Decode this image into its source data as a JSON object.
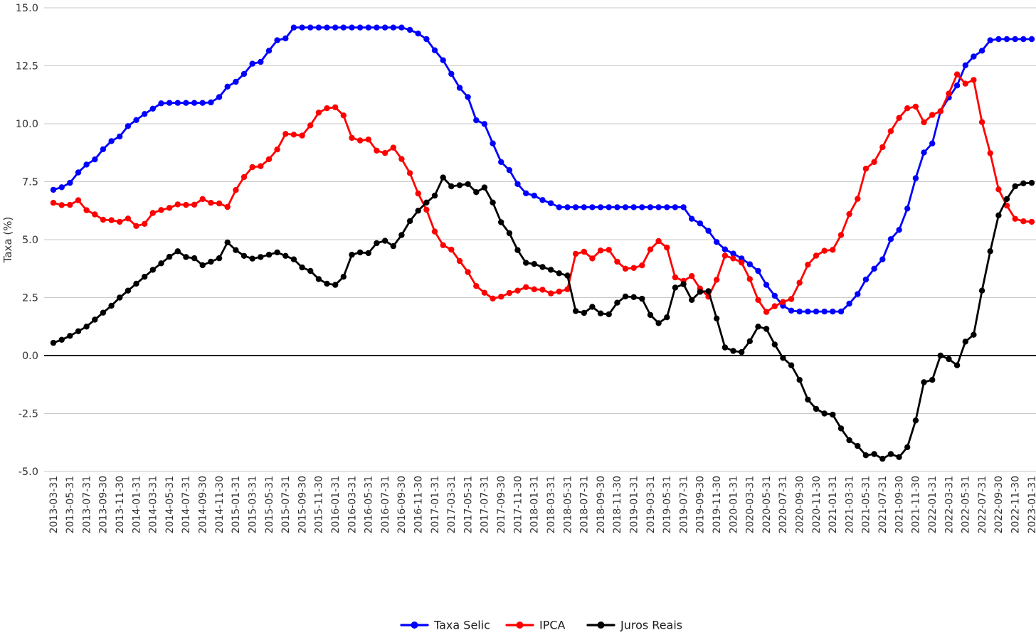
{
  "page": {
    "background": "#ffffff"
  },
  "chart_data": {
    "type": "line",
    "title": "",
    "xlabel": "",
    "ylabel": "Taxa (%)",
    "ylim": [
      -5.0,
      15.0
    ],
    "yticks": [
      15.0,
      12.5,
      10.0,
      7.5,
      5.0,
      2.5,
      0.0,
      -2.5,
      -5.0
    ],
    "x_tick_step": 2,
    "x_tick_rotation": 90,
    "grid": "horizontal",
    "zero_line": true,
    "legend_position": "bottom-center",
    "marker": "circle",
    "style": {
      "grid_color": "#c9c9c9",
      "zero_line_color": "#000000",
      "tick_label_color": "#333333",
      "axis_title_color": "#333333",
      "legend_text_color": "#1a1a1a"
    },
    "x": [
      "2013-03-31",
      "2013-04-30",
      "2013-05-31",
      "2013-06-30",
      "2013-07-31",
      "2013-08-31",
      "2013-09-30",
      "2013-10-31",
      "2013-11-30",
      "2013-12-31",
      "2014-01-31",
      "2014-02-28",
      "2014-03-31",
      "2014-04-30",
      "2014-05-31",
      "2014-06-30",
      "2014-07-31",
      "2014-08-31",
      "2014-09-30",
      "2014-10-31",
      "2014-11-30",
      "2014-12-31",
      "2015-01-31",
      "2015-02-28",
      "2015-03-31",
      "2015-04-30",
      "2015-05-31",
      "2015-06-30",
      "2015-07-31",
      "2015-08-31",
      "2015-09-30",
      "2015-10-31",
      "2015-11-30",
      "2015-12-31",
      "2016-01-31",
      "2016-02-29",
      "2016-03-31",
      "2016-04-30",
      "2016-05-31",
      "2016-06-30",
      "2016-07-31",
      "2016-08-31",
      "2016-09-30",
      "2016-10-31",
      "2016-11-30",
      "2016-12-31",
      "2017-01-31",
      "2017-02-28",
      "2017-03-31",
      "2017-04-30",
      "2017-05-31",
      "2017-06-30",
      "2017-07-31",
      "2017-08-31",
      "2017-09-30",
      "2017-10-31",
      "2017-11-30",
      "2017-12-31",
      "2018-01-31",
      "2018-02-28",
      "2018-03-31",
      "2018-04-30",
      "2018-05-31",
      "2018-06-30",
      "2018-07-31",
      "2018-08-31",
      "2018-09-30",
      "2018-10-31",
      "2018-11-30",
      "2018-12-31",
      "2019-01-31",
      "2019-02-28",
      "2019-03-31",
      "2019-04-30",
      "2019-05-31",
      "2019-06-30",
      "2019-07-31",
      "2019-08-31",
      "2019-09-30",
      "2019-10-31",
      "2019-11-30",
      "2019-12-31",
      "2020-01-31",
      "2020-02-29",
      "2020-03-31",
      "2020-04-30",
      "2020-05-31",
      "2020-06-30",
      "2020-07-31",
      "2020-08-31",
      "2020-09-30",
      "2020-10-31",
      "2020-11-30",
      "2020-12-31",
      "2021-01-31",
      "2021-02-28",
      "2021-03-31",
      "2021-04-30",
      "2021-05-31",
      "2021-06-30",
      "2021-07-31",
      "2021-08-31",
      "2021-09-30",
      "2021-10-31",
      "2021-11-30",
      "2021-12-31",
      "2022-01-31",
      "2022-02-28",
      "2022-03-31",
      "2022-04-30",
      "2022-05-31",
      "2022-06-30",
      "2022-07-31",
      "2022-08-31",
      "2022-09-30",
      "2022-10-31",
      "2022-11-30",
      "2022-12-31",
      "2023-01-31"
    ],
    "series": [
      {
        "name": "Taxa Selic",
        "color": "#0000ff",
        "values": [
          7.15,
          7.26,
          7.45,
          7.9,
          8.24,
          8.46,
          8.9,
          9.25,
          9.45,
          9.9,
          10.16,
          10.42,
          10.65,
          10.88,
          10.9,
          10.9,
          10.9,
          10.9,
          10.9,
          10.92,
          11.15,
          11.6,
          11.81,
          12.15,
          12.59,
          12.67,
          13.15,
          13.6,
          13.68,
          14.15,
          14.15,
          14.15,
          14.15,
          14.15,
          14.15,
          14.15,
          14.15,
          14.15,
          14.15,
          14.15,
          14.15,
          14.15,
          14.15,
          14.05,
          13.89,
          13.65,
          13.17,
          12.74,
          12.15,
          11.55,
          11.15,
          10.15,
          9.99,
          9.15,
          8.35,
          8.0,
          7.4,
          7.0,
          6.9,
          6.71,
          6.57,
          6.4,
          6.4,
          6.4,
          6.4,
          6.4,
          6.4,
          6.4,
          6.4,
          6.4,
          6.4,
          6.4,
          6.4,
          6.4,
          6.4,
          6.4,
          6.4,
          5.9,
          5.7,
          5.38,
          4.9,
          4.58,
          4.4,
          4.19,
          3.94,
          3.65,
          3.05,
          2.58,
          2.15,
          1.94,
          1.9,
          1.9,
          1.9,
          1.9,
          1.9,
          1.9,
          2.24,
          2.65,
          3.28,
          3.75,
          4.15,
          5.02,
          5.42,
          6.34,
          7.65,
          8.76,
          9.15,
          10.54,
          11.13,
          11.65,
          12.52,
          12.9,
          13.15,
          13.6,
          13.65,
          13.65,
          13.65,
          13.65,
          13.65
        ]
      },
      {
        "name": "IPCA",
        "color": "#ff0000",
        "values": [
          6.59,
          6.49,
          6.5,
          6.7,
          6.27,
          6.09,
          5.86,
          5.84,
          5.77,
          5.91,
          5.59,
          5.68,
          6.15,
          6.28,
          6.37,
          6.52,
          6.5,
          6.51,
          6.75,
          6.59,
          6.56,
          6.41,
          7.14,
          7.7,
          8.13,
          8.17,
          8.47,
          8.89,
          9.56,
          9.53,
          9.49,
          9.93,
          10.48,
          10.67,
          10.71,
          10.36,
          9.39,
          9.28,
          9.32,
          8.84,
          8.74,
          8.97,
          8.48,
          7.87,
          6.99,
          6.29,
          5.35,
          4.76,
          4.57,
          4.08,
          3.6,
          3.0,
          2.71,
          2.46,
          2.54,
          2.7,
          2.8,
          2.95,
          2.86,
          2.84,
          2.68,
          2.76,
          2.86,
          4.39,
          4.48,
          4.19,
          4.53,
          4.56,
          4.05,
          3.75,
          3.78,
          3.89,
          4.58,
          4.94,
          4.66,
          3.37,
          3.22,
          3.43,
          2.89,
          2.54,
          3.27,
          4.31,
          4.19,
          4.01,
          3.3,
          2.4,
          1.88,
          2.13,
          2.31,
          2.44,
          3.14,
          3.92,
          4.31,
          4.52,
          4.56,
          5.2,
          6.1,
          6.76,
          8.06,
          8.35,
          8.99,
          9.68,
          10.25,
          10.67,
          10.74,
          10.06,
          10.38,
          10.54,
          11.3,
          12.13,
          11.73,
          11.89,
          10.07,
          8.73,
          7.17,
          6.47,
          5.9,
          5.79,
          5.77
        ]
      },
      {
        "name": "Juros Reais",
        "color": "#000000",
        "values": [
          0.55,
          0.68,
          0.85,
          1.05,
          1.25,
          1.55,
          1.85,
          2.15,
          2.5,
          2.8,
          3.1,
          3.4,
          3.7,
          3.98,
          4.26,
          4.5,
          4.25,
          4.2,
          3.9,
          4.05,
          4.2,
          4.88,
          4.55,
          4.3,
          4.18,
          4.25,
          4.35,
          4.45,
          4.3,
          4.15,
          3.8,
          3.65,
          3.3,
          3.1,
          3.05,
          3.4,
          4.35,
          4.45,
          4.42,
          4.85,
          4.95,
          4.72,
          5.2,
          5.8,
          6.25,
          6.6,
          6.9,
          7.68,
          7.3,
          7.35,
          7.4,
          7.05,
          7.25,
          6.6,
          5.75,
          5.28,
          4.55,
          4.0,
          3.95,
          3.82,
          3.7,
          3.55,
          3.45,
          1.92,
          1.84,
          2.1,
          1.82,
          1.78,
          2.28,
          2.55,
          2.52,
          2.45,
          1.75,
          1.4,
          1.65,
          2.93,
          3.08,
          2.4,
          2.75,
          2.78,
          1.6,
          0.35,
          0.2,
          0.15,
          0.62,
          1.25,
          1.15,
          0.48,
          -0.1,
          -0.42,
          -1.05,
          -1.9,
          -2.3,
          -2.5,
          -2.55,
          -3.14,
          -3.65,
          -3.9,
          -4.3,
          -4.25,
          -4.45,
          -4.25,
          -4.38,
          -3.95,
          -2.8,
          -1.15,
          -1.05,
          0.0,
          -0.15,
          -0.42,
          0.6,
          0.9,
          2.8,
          4.5,
          6.05,
          6.75,
          7.3,
          7.43,
          7.45
        ]
      }
    ]
  }
}
